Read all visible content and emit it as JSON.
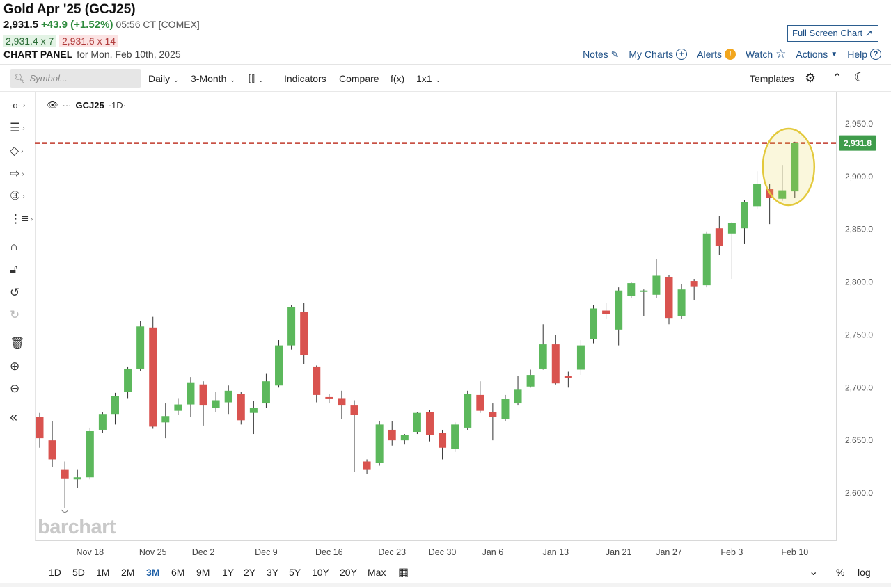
{
  "header": {
    "title": "Gold Apr '25 (GCJ25)",
    "last": "2,931.5",
    "change": "+43.9 (+1.52%)",
    "time": "05:56 CT [COMEX]",
    "bid": "2,931.4 x 7",
    "ask": "2,931.6 x 14",
    "panel_title": "CHART PANEL",
    "panel_sub": "for Mon, Feb 10th, 2025",
    "fullscreen_label": "Full Screen Chart"
  },
  "links": {
    "notes": "Notes",
    "my_charts": "My Charts",
    "alerts": "Alerts",
    "watch": "Watch",
    "actions": "Actions",
    "help": "Help"
  },
  "toolbar": {
    "symbol_placeholder": "Symbol...",
    "interval": "Daily",
    "range": "3-Month",
    "indicators": "Indicators",
    "compare": "Compare",
    "fx": "f(x)",
    "layout": "1x1",
    "templates": "Templates"
  },
  "legend": {
    "symbol": "GCJ25",
    "timeframe": "·1D·"
  },
  "watermark": "barchart",
  "timeframes": [
    "1D",
    "5D",
    "1M",
    "2M",
    "3M",
    "6M",
    "9M",
    "1Y",
    "2Y",
    "3Y",
    "5Y",
    "10Y",
    "20Y",
    "Max"
  ],
  "active_timeframe": "3M",
  "bottom_right": {
    "percent": "%",
    "log": "log"
  },
  "colors": {
    "up": "#5cb85c",
    "down": "#d9534f",
    "last_line": "#c0392b",
    "highlight": "#e3c93c",
    "link": "#1d4f86"
  },
  "chart_data": {
    "type": "candlestick",
    "last_price_label": "2,931.8",
    "last_price": 2931.8,
    "ylim": [
      2560,
      2965
    ],
    "y_ticks": [
      "2,950.0",
      "2,900.0",
      "2,850.0",
      "2,800.0",
      "2,750.0",
      "2,700.0",
      "2,650.0",
      "2,600.0"
    ],
    "y_tick_values": [
      2950,
      2900,
      2850,
      2800,
      2750,
      2700,
      2650,
      2600
    ],
    "x_tick_labels": [
      "Nov 18",
      "Nov 25",
      "Dec 2",
      "Dec 9",
      "Dec 16",
      "Dec 23",
      "Dec 30",
      "Jan 6",
      "Jan 13",
      "Jan 21",
      "Jan 27",
      "Feb 3",
      "Feb 10"
    ],
    "x_tick_index": [
      4,
      9,
      13,
      18,
      23,
      28,
      32,
      36,
      41,
      46,
      50,
      55,
      60
    ],
    "candles": [
      {
        "o": 2672,
        "h": 2676,
        "l": 2643,
        "c": 2652
      },
      {
        "o": 2650,
        "h": 2668,
        "l": 2625,
        "c": 2632
      },
      {
        "o": 2622,
        "h": 2630,
        "l": 2586,
        "c": 2614
      },
      {
        "o": 2613,
        "h": 2622,
        "l": 2605,
        "c": 2615
      },
      {
        "o": 2615,
        "h": 2662,
        "l": 2613,
        "c": 2659
      },
      {
        "o": 2660,
        "h": 2677,
        "l": 2657,
        "c": 2675
      },
      {
        "o": 2675,
        "h": 2695,
        "l": 2665,
        "c": 2692
      },
      {
        "o": 2696,
        "h": 2720,
        "l": 2690,
        "c": 2718
      },
      {
        "o": 2718,
        "h": 2763,
        "l": 2716,
        "c": 2758
      },
      {
        "o": 2757,
        "h": 2767,
        "l": 2661,
        "c": 2663
      },
      {
        "o": 2667,
        "h": 2685,
        "l": 2652,
        "c": 2673
      },
      {
        "o": 2678,
        "h": 2690,
        "l": 2674,
        "c": 2684
      },
      {
        "o": 2684,
        "h": 2710,
        "l": 2672,
        "c": 2705
      },
      {
        "o": 2703,
        "h": 2706,
        "l": 2664,
        "c": 2683
      },
      {
        "o": 2681,
        "h": 2696,
        "l": 2677,
        "c": 2688
      },
      {
        "o": 2686,
        "h": 2702,
        "l": 2675,
        "c": 2697
      },
      {
        "o": 2694,
        "h": 2696,
        "l": 2665,
        "c": 2669
      },
      {
        "o": 2676,
        "h": 2687,
        "l": 2656,
        "c": 2681
      },
      {
        "o": 2685,
        "h": 2713,
        "l": 2681,
        "c": 2706
      },
      {
        "o": 2702,
        "h": 2745,
        "l": 2700,
        "c": 2740
      },
      {
        "o": 2740,
        "h": 2778,
        "l": 2736,
        "c": 2776
      },
      {
        "o": 2772,
        "h": 2780,
        "l": 2722,
        "c": 2731
      },
      {
        "o": 2720,
        "h": 2721,
        "l": 2686,
        "c": 2693
      },
      {
        "o": 2691,
        "h": 2694,
        "l": 2685,
        "c": 2690
      },
      {
        "o": 2690,
        "h": 2697,
        "l": 2670,
        "c": 2683
      },
      {
        "o": 2683,
        "h": 2688,
        "l": 2620,
        "c": 2674
      },
      {
        "o": 2630,
        "h": 2632,
        "l": 2618,
        "c": 2622
      },
      {
        "o": 2629,
        "h": 2668,
        "l": 2626,
        "c": 2665
      },
      {
        "o": 2660,
        "h": 2668,
        "l": 2645,
        "c": 2650
      },
      {
        "o": 2650,
        "h": 2656,
        "l": 2646,
        "c": 2655
      },
      {
        "o": 2658,
        "h": 2677,
        "l": 2656,
        "c": 2676
      },
      {
        "o": 2677,
        "h": 2679,
        "l": 2649,
        "c": 2655
      },
      {
        "o": 2657,
        "h": 2660,
        "l": 2632,
        "c": 2643
      },
      {
        "o": 2642,
        "h": 2667,
        "l": 2639,
        "c": 2665
      },
      {
        "o": 2662,
        "h": 2697,
        "l": 2660,
        "c": 2694
      },
      {
        "o": 2693,
        "h": 2706,
        "l": 2676,
        "c": 2678
      },
      {
        "o": 2677,
        "h": 2685,
        "l": 2650,
        "c": 2672
      },
      {
        "o": 2670,
        "h": 2693,
        "l": 2668,
        "c": 2689
      },
      {
        "o": 2685,
        "h": 2711,
        "l": 2683,
        "c": 2698
      },
      {
        "o": 2701,
        "h": 2717,
        "l": 2700,
        "c": 2712
      },
      {
        "o": 2718,
        "h": 2760,
        "l": 2717,
        "c": 2741
      },
      {
        "o": 2741,
        "h": 2750,
        "l": 2703,
        "c": 2704
      },
      {
        "o": 2711,
        "h": 2715,
        "l": 2700,
        "c": 2709
      },
      {
        "o": 2717,
        "h": 2745,
        "l": 2712,
        "c": 2740
      },
      {
        "o": 2746,
        "h": 2778,
        "l": 2742,
        "c": 2775
      },
      {
        "o": 2773,
        "h": 2780,
        "l": 2765,
        "c": 2770
      },
      {
        "o": 2755,
        "h": 2795,
        "l": 2740,
        "c": 2792
      },
      {
        "o": 2787,
        "h": 2800,
        "l": 2785,
        "c": 2799
      },
      {
        "o": 2792,
        "h": 2793,
        "l": 2768,
        "c": 2792
      },
      {
        "o": 2788,
        "h": 2822,
        "l": 2785,
        "c": 2806
      },
      {
        "o": 2805,
        "h": 2807,
        "l": 2760,
        "c": 2766
      },
      {
        "o": 2768,
        "h": 2798,
        "l": 2765,
        "c": 2793
      },
      {
        "o": 2801,
        "h": 2803,
        "l": 2783,
        "c": 2796
      },
      {
        "o": 2797,
        "h": 2848,
        "l": 2795,
        "c": 2846
      },
      {
        "o": 2851,
        "h": 2863,
        "l": 2826,
        "c": 2834
      },
      {
        "o": 2846,
        "h": 2857,
        "l": 2803,
        "c": 2856
      },
      {
        "o": 2851,
        "h": 2878,
        "l": 2836,
        "c": 2876
      },
      {
        "o": 2872,
        "h": 2905,
        "l": 2869,
        "c": 2893
      },
      {
        "o": 2888,
        "h": 2893,
        "l": 2855,
        "c": 2880
      },
      {
        "o": 2879,
        "h": 2911,
        "l": 2877,
        "c": 2887
      },
      {
        "o": 2886,
        "h": 2933,
        "l": 2880,
        "c": 2932
      }
    ]
  }
}
